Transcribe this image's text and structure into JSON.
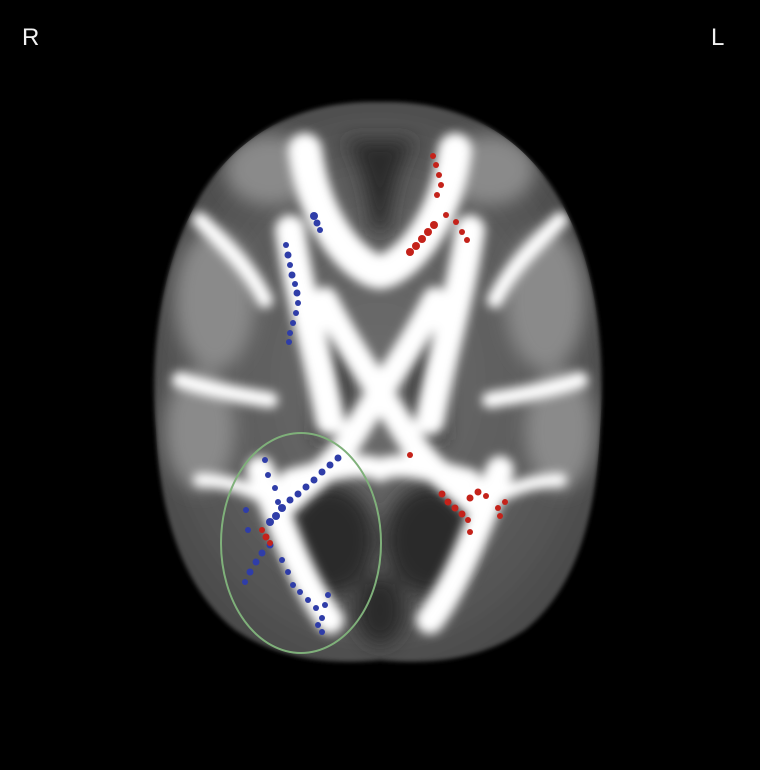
{
  "orientation": {
    "right_label": "R",
    "left_label": "L"
  },
  "overlay": {
    "colors": {
      "blue_cluster": "#2f3da8",
      "red_cluster": "#c4221a",
      "region_outline": "#7fb07a",
      "white_matter": "#ffffff",
      "background": "#000000"
    }
  }
}
